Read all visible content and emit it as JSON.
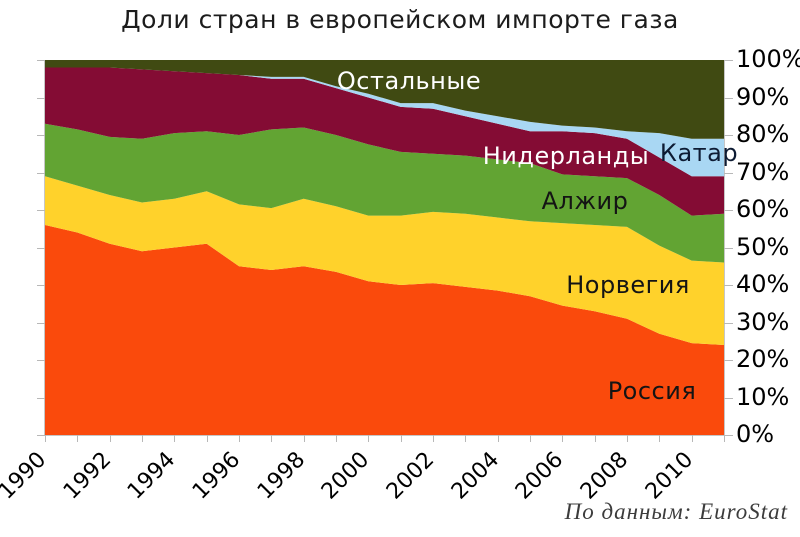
{
  "title": "Доли стран в европейском импорте газа",
  "attribution": "По данным: EuroStat",
  "axes": {
    "y_ticks": [
      "0%",
      "10%",
      "20%",
      "30%",
      "40%",
      "50%",
      "60%",
      "70%",
      "80%",
      "90%",
      "100%"
    ],
    "x_tick_years": [
      1990,
      1992,
      1994,
      1996,
      1998,
      2000,
      2002,
      2004,
      2006,
      2008,
      2010
    ]
  },
  "chart_data": {
    "type": "area",
    "stacked": true,
    "normalized_percent": true,
    "title": "Доли стран в европейском импорте газа",
    "xlabel": "",
    "ylabel": "",
    "ylim": [
      0,
      100
    ],
    "y_unit": "%",
    "grid": false,
    "legend_position": "labels-inside-areas",
    "x": [
      1990,
      1991,
      1992,
      1993,
      1994,
      1995,
      1996,
      1997,
      1998,
      1999,
      2000,
      2001,
      2002,
      2003,
      2004,
      2005,
      2006,
      2007,
      2008,
      2009,
      2010,
      2011
    ],
    "series": [
      {
        "id": "rossiya",
        "name": "Россия",
        "color": "#FA4A0C",
        "label_color": "#141414",
        "values": [
          56,
          54,
          51,
          49,
          50,
          51,
          45,
          44,
          45,
          43.5,
          41,
          40,
          40.5,
          39.5,
          38.5,
          37,
          34.5,
          33,
          31,
          27,
          24.5,
          24
        ]
      },
      {
        "id": "norvegiya",
        "name": "Норвегия",
        "color": "#FFD22B",
        "label_color": "#141414",
        "values": [
          13,
          12.5,
          13,
          13,
          13,
          14,
          16.5,
          16.5,
          18,
          17.5,
          17.5,
          18.5,
          19,
          19.5,
          19.5,
          20,
          22,
          23,
          24.5,
          23.5,
          22,
          22
        ]
      },
      {
        "id": "alzhir",
        "name": "Алжир",
        "color": "#62A433",
        "label_color": "#141414",
        "values": [
          14,
          15,
          15.5,
          17,
          17.5,
          16,
          18.5,
          21,
          19,
          19,
          19,
          17,
          15.5,
          15.5,
          15.5,
          15.5,
          13,
          13,
          13,
          13.5,
          12,
          13
        ]
      },
      {
        "id": "niderlandy",
        "name": "Нидерланды",
        "color": "#840C34",
        "label_color": "#ffffff",
        "values": [
          15,
          16.5,
          18.5,
          18.5,
          16.5,
          15.5,
          16,
          13.5,
          13,
          12.5,
          12.5,
          12,
          12,
          10.5,
          9.5,
          8.5,
          11.5,
          11.5,
          10.5,
          10,
          10.5,
          10
        ]
      },
      {
        "id": "katar",
        "name": "Катар",
        "color": "#A9D7F3",
        "label_color": "#0d1b33",
        "values": [
          0,
          0,
          0,
          0,
          0,
          0,
          0,
          0.5,
          0.5,
          0.5,
          1,
          1,
          1.5,
          1.5,
          2,
          2.5,
          1.5,
          1.5,
          2,
          6.5,
          10,
          10
        ]
      },
      {
        "id": "ostalnye",
        "name": "Остальные",
        "color": "#404A12",
        "label_color": "#ffffff",
        "values": [
          2,
          2,
          2,
          2.5,
          3,
          3.5,
          4,
          4.5,
          4.5,
          7,
          9,
          11.5,
          11.5,
          13.5,
          15,
          16.5,
          17.5,
          18,
          19,
          19.5,
          21,
          21
        ]
      }
    ]
  }
}
